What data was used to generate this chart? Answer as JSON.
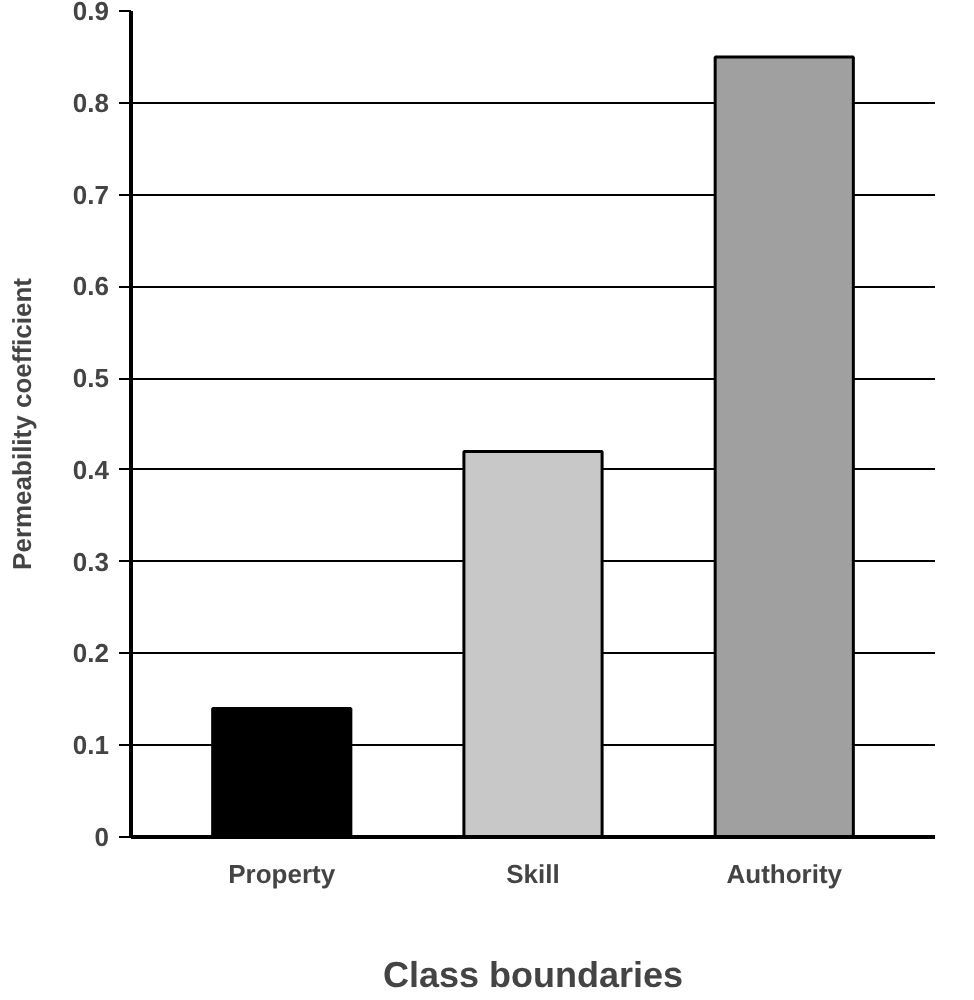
{
  "chart_data": {
    "type": "bar",
    "xlabel": "Class boundaries",
    "ylabel": "Permeability coefficient",
    "categories": [
      "Property",
      "Skill",
      "Authority"
    ],
    "values": [
      0.14,
      0.42,
      0.85
    ],
    "colors": [
      "#000000",
      "#c8c8c8",
      "#a0a0a0"
    ],
    "ylim": [
      0,
      0.9
    ],
    "yticks": [
      0,
      0.1,
      0.2,
      0.3,
      0.4,
      0.5,
      0.6,
      0.7,
      0.8,
      0.9
    ],
    "grid": "y"
  }
}
